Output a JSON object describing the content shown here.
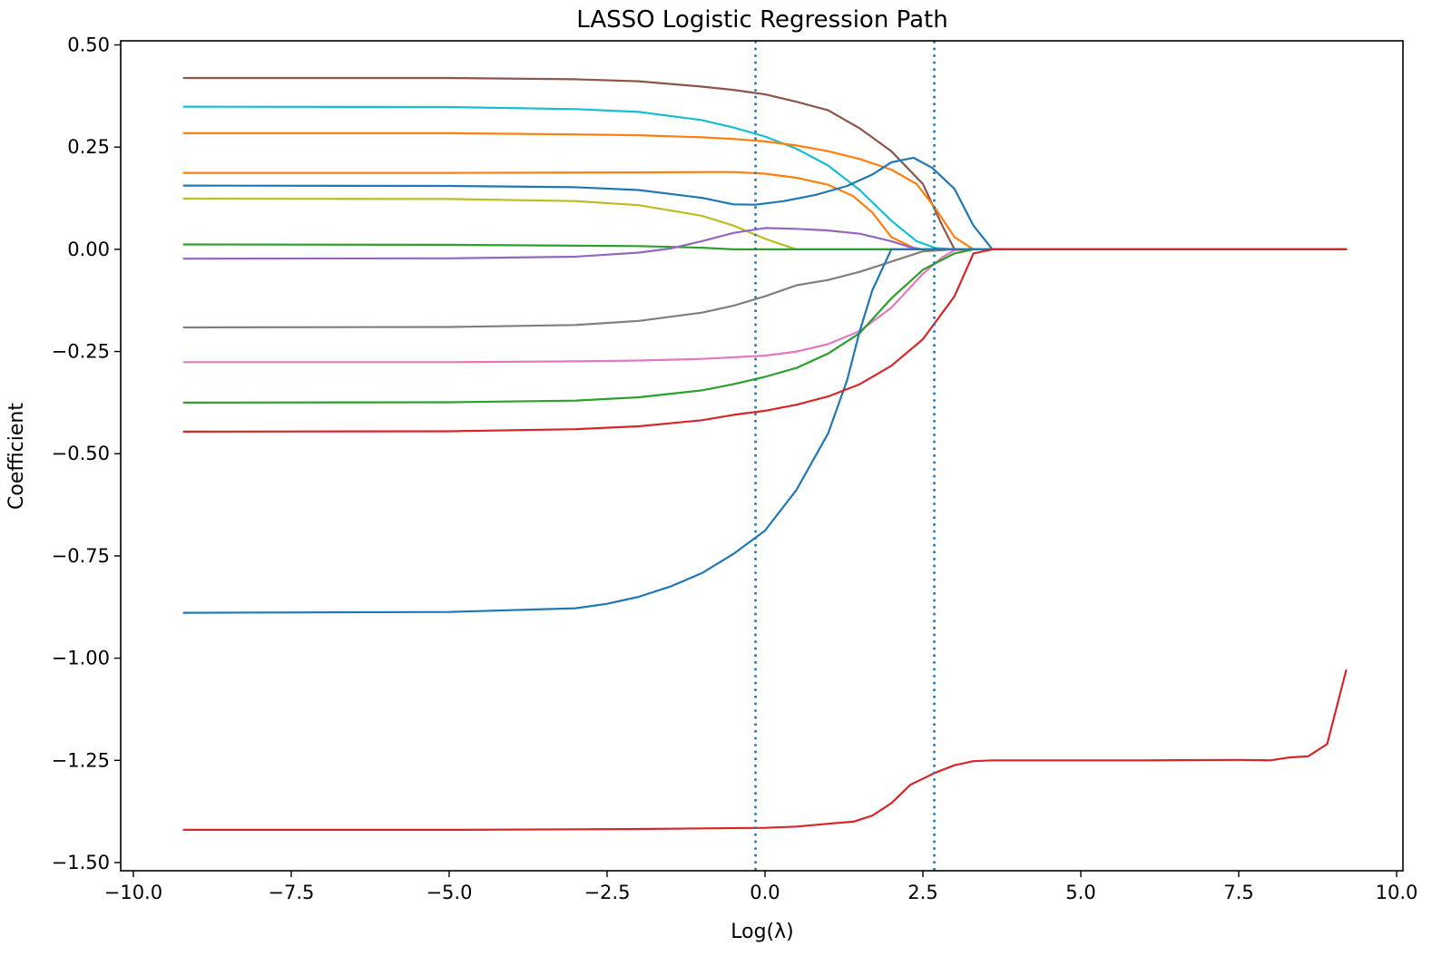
{
  "chart_data": {
    "type": "line",
    "title": "LASSO Logistic Regression Path",
    "xlabel": "Log(λ)",
    "ylabel": "Coefficient",
    "xlim": [
      -10.2,
      10.1
    ],
    "ylim": [
      -1.52,
      0.51
    ],
    "xticks": [
      -10.0,
      -7.5,
      -5.0,
      -2.5,
      0.0,
      2.5,
      5.0,
      7.5,
      10.0
    ],
    "xtick_labels": [
      "−10.0",
      "−7.5",
      "−5.0",
      "−2.5",
      "0.0",
      "2.5",
      "5.0",
      "7.5",
      "10.0"
    ],
    "yticks": [
      0.5,
      0.25,
      0.0,
      -0.25,
      -0.5,
      -0.75,
      -1.0,
      -1.25,
      -1.5
    ],
    "ytick_labels": [
      "0.50",
      "0.25",
      "0.00",
      "−0.25",
      "−0.50",
      "−0.75",
      "−1.00",
      "−1.25",
      "−1.50"
    ],
    "grid": false,
    "vlines": [
      {
        "x": -0.15,
        "color": "#1f77b4",
        "style": "dotted"
      },
      {
        "x": 2.68,
        "color": "#1f77b4",
        "style": "dotted"
      }
    ],
    "series": [
      {
        "color": "#8c564b",
        "points": [
          [
            -9.2,
            0.419
          ],
          [
            -5,
            0.419
          ],
          [
            -3,
            0.416
          ],
          [
            -2,
            0.411
          ],
          [
            -1,
            0.398
          ],
          [
            -0.5,
            0.39
          ],
          [
            0,
            0.379
          ],
          [
            0.5,
            0.361
          ],
          [
            1,
            0.34
          ],
          [
            1.5,
            0.296
          ],
          [
            2,
            0.24
          ],
          [
            2.5,
            0.16
          ],
          [
            2.8,
            0.06
          ],
          [
            3.0,
            0.0
          ],
          [
            3.6,
            0.0
          ],
          [
            9.2,
            0.0
          ]
        ]
      },
      {
        "color": "#17becf",
        "points": [
          [
            -9.2,
            0.349
          ],
          [
            -5,
            0.348
          ],
          [
            -3,
            0.343
          ],
          [
            -2,
            0.336
          ],
          [
            -1,
            0.316
          ],
          [
            -0.5,
            0.298
          ],
          [
            0,
            0.276
          ],
          [
            0.5,
            0.246
          ],
          [
            1,
            0.205
          ],
          [
            1.5,
            0.145
          ],
          [
            2,
            0.07
          ],
          [
            2.4,
            0.02
          ],
          [
            2.7,
            0.003
          ],
          [
            3.0,
            0.0
          ],
          [
            9.2,
            0.0
          ]
        ]
      },
      {
        "color": "#ff7f0e",
        "points": [
          [
            -9.2,
            0.284
          ],
          [
            -5,
            0.284
          ],
          [
            -3,
            0.281
          ],
          [
            -2,
            0.279
          ],
          [
            -1,
            0.274
          ],
          [
            -0.5,
            0.27
          ],
          [
            0,
            0.264
          ],
          [
            0.5,
            0.254
          ],
          [
            1,
            0.24
          ],
          [
            1.5,
            0.221
          ],
          [
            2,
            0.195
          ],
          [
            2.4,
            0.16
          ],
          [
            2.7,
            0.1
          ],
          [
            3.0,
            0.03
          ],
          [
            3.3,
            0.0
          ],
          [
            9.2,
            0.0
          ]
        ]
      },
      {
        "color": "#ff7f0e",
        "points": [
          [
            -9.2,
            0.187
          ],
          [
            -5,
            0.187
          ],
          [
            -2,
            0.188
          ],
          [
            -1,
            0.189
          ],
          [
            -0.5,
            0.189
          ],
          [
            0,
            0.185
          ],
          [
            0.5,
            0.175
          ],
          [
            1,
            0.158
          ],
          [
            1.4,
            0.13
          ],
          [
            1.7,
            0.09
          ],
          [
            2.0,
            0.03
          ],
          [
            2.4,
            0.0
          ],
          [
            9.2,
            0.0
          ]
        ]
      },
      {
        "color": "#1f77b4",
        "points": [
          [
            -9.2,
            0.156
          ],
          [
            -5,
            0.155
          ],
          [
            -3,
            0.152
          ],
          [
            -2,
            0.145
          ],
          [
            -1,
            0.126
          ],
          [
            -0.5,
            0.11
          ],
          [
            -0.15,
            0.109
          ],
          [
            0.3,
            0.118
          ],
          [
            0.8,
            0.133
          ],
          [
            1.3,
            0.155
          ],
          [
            1.7,
            0.183
          ],
          [
            2.0,
            0.213
          ],
          [
            2.35,
            0.224
          ],
          [
            2.65,
            0.199
          ],
          [
            3.0,
            0.148
          ],
          [
            3.3,
            0.058
          ],
          [
            3.6,
            0.0
          ],
          [
            9.2,
            0.0
          ]
        ]
      },
      {
        "color": "#bcbd22",
        "points": [
          [
            -9.2,
            0.124
          ],
          [
            -5,
            0.123
          ],
          [
            -3,
            0.118
          ],
          [
            -2,
            0.108
          ],
          [
            -1,
            0.082
          ],
          [
            -0.5,
            0.058
          ],
          [
            0,
            0.026
          ],
          [
            0.3,
            0.01
          ],
          [
            0.5,
            0.0
          ],
          [
            9.2,
            0.0
          ]
        ]
      },
      {
        "color": "#2ca02c",
        "points": [
          [
            -9.2,
            0.012
          ],
          [
            -5,
            0.011
          ],
          [
            -2,
            0.008
          ],
          [
            -1,
            0.004
          ],
          [
            -0.5,
            0.0
          ],
          [
            9.2,
            0.0
          ]
        ]
      },
      {
        "color": "#9467bd",
        "points": [
          [
            -9.2,
            -0.023
          ],
          [
            -5,
            -0.022
          ],
          [
            -3,
            -0.018
          ],
          [
            -2,
            -0.008
          ],
          [
            -1.5,
            0.002
          ],
          [
            -1,
            0.02
          ],
          [
            -0.5,
            0.04
          ],
          [
            0,
            0.052
          ],
          [
            0.5,
            0.05
          ],
          [
            1,
            0.046
          ],
          [
            1.5,
            0.038
          ],
          [
            2,
            0.02
          ],
          [
            2.3,
            0.005
          ],
          [
            2.5,
            0.0
          ],
          [
            9.2,
            0.0
          ]
        ]
      },
      {
        "color": "#7f7f7f",
        "points": [
          [
            -9.2,
            -0.191
          ],
          [
            -5,
            -0.19
          ],
          [
            -3,
            -0.185
          ],
          [
            -2,
            -0.175
          ],
          [
            -1,
            -0.155
          ],
          [
            -0.5,
            -0.138
          ],
          [
            0,
            -0.115
          ],
          [
            0.5,
            -0.088
          ],
          [
            1,
            -0.075
          ],
          [
            1.5,
            -0.055
          ],
          [
            2,
            -0.03
          ],
          [
            2.5,
            -0.005
          ],
          [
            3.0,
            0.0
          ],
          [
            9.2,
            0.0
          ]
        ]
      },
      {
        "color": "#e377c2",
        "points": [
          [
            -9.2,
            -0.276
          ],
          [
            -5,
            -0.276
          ],
          [
            -3,
            -0.274
          ],
          [
            -2,
            -0.272
          ],
          [
            -1,
            -0.268
          ],
          [
            0,
            -0.26
          ],
          [
            0.5,
            -0.25
          ],
          [
            1,
            -0.232
          ],
          [
            1.5,
            -0.2
          ],
          [
            2,
            -0.143
          ],
          [
            2.5,
            -0.06
          ],
          [
            2.8,
            -0.02
          ],
          [
            3.0,
            -0.002
          ],
          [
            3.3,
            0.0
          ],
          [
            9.2,
            0.0
          ]
        ]
      },
      {
        "color": "#2ca02c",
        "points": [
          [
            -9.2,
            -0.375
          ],
          [
            -5,
            -0.374
          ],
          [
            -3,
            -0.37
          ],
          [
            -2,
            -0.362
          ],
          [
            -1,
            -0.345
          ],
          [
            -0.5,
            -0.33
          ],
          [
            0,
            -0.312
          ],
          [
            0.5,
            -0.29
          ],
          [
            1,
            -0.255
          ],
          [
            1.5,
            -0.205
          ],
          [
            2,
            -0.12
          ],
          [
            2.5,
            -0.05
          ],
          [
            3.0,
            -0.01
          ],
          [
            3.3,
            0.0
          ],
          [
            9.2,
            0.0
          ]
        ]
      },
      {
        "color": "#1f77b4",
        "points": [
          [
            -9.2,
            -0.889
          ],
          [
            -5,
            -0.887
          ],
          [
            -3,
            -0.878
          ],
          [
            -2.5,
            -0.867
          ],
          [
            -2,
            -0.85
          ],
          [
            -1.5,
            -0.825
          ],
          [
            -1,
            -0.792
          ],
          [
            -0.5,
            -0.745
          ],
          [
            0,
            -0.688
          ],
          [
            0.5,
            -0.588
          ],
          [
            1,
            -0.45
          ],
          [
            1.3,
            -0.32
          ],
          [
            1.5,
            -0.2
          ],
          [
            1.7,
            -0.1
          ],
          [
            2.0,
            0.0
          ],
          [
            9.2,
            0.0
          ]
        ]
      },
      {
        "color": "#d62728",
        "points": [
          [
            -9.2,
            -0.446
          ],
          [
            -5,
            -0.445
          ],
          [
            -3,
            -0.44
          ],
          [
            -2,
            -0.433
          ],
          [
            -1,
            -0.418
          ],
          [
            -0.5,
            -0.405
          ],
          [
            0,
            -0.395
          ],
          [
            0.5,
            -0.38
          ],
          [
            1,
            -0.36
          ],
          [
            1.5,
            -0.33
          ],
          [
            2,
            -0.285
          ],
          [
            2.5,
            -0.22
          ],
          [
            3.0,
            -0.115
          ],
          [
            3.3,
            -0.01
          ],
          [
            3.6,
            0.0
          ],
          [
            9.2,
            0.0
          ]
        ]
      },
      {
        "color": "#d62728",
        "points": [
          [
            -9.2,
            -1.42
          ],
          [
            -5,
            -1.42
          ],
          [
            -2,
            -1.418
          ],
          [
            0,
            -1.415
          ],
          [
            0.5,
            -1.412
          ],
          [
            1,
            -1.405
          ],
          [
            1.4,
            -1.4
          ],
          [
            1.7,
            -1.385
          ],
          [
            2,
            -1.355
          ],
          [
            2.3,
            -1.31
          ],
          [
            2.7,
            -1.28
          ],
          [
            3.0,
            -1.262
          ],
          [
            3.3,
            -1.252
          ],
          [
            3.6,
            -1.25
          ],
          [
            6,
            -1.25
          ],
          [
            7.5,
            -1.249
          ],
          [
            8,
            -1.25
          ],
          [
            8.3,
            -1.243
          ],
          [
            8.6,
            -1.24
          ],
          [
            8.9,
            -1.21
          ],
          [
            9.2,
            -1.03
          ]
        ]
      }
    ]
  }
}
